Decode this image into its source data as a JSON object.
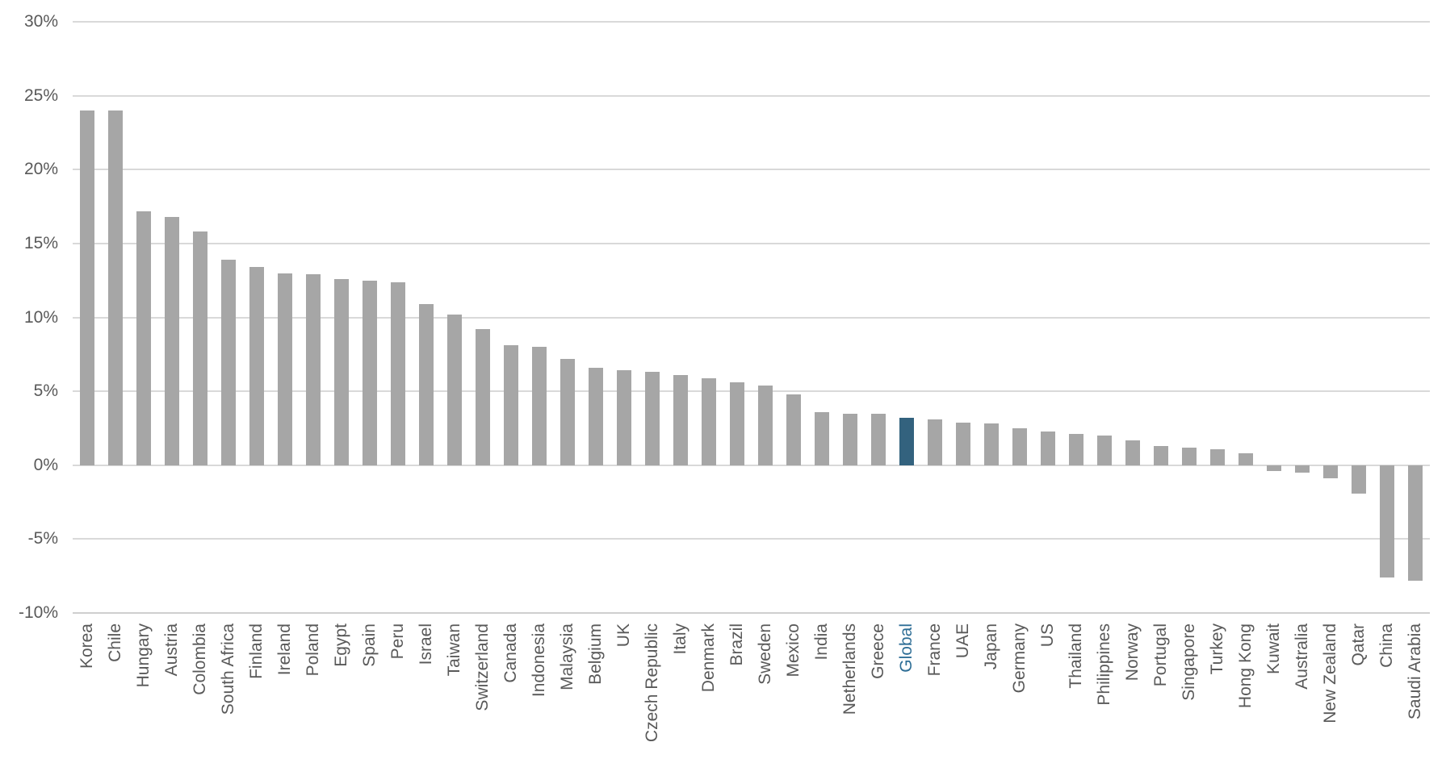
{
  "chart_data": {
    "type": "bar",
    "title": "",
    "xlabel": "",
    "ylabel": "",
    "grid": true,
    "legend": "none",
    "ylim": [
      -10,
      30
    ],
    "y_ticks": [
      {
        "value": 30,
        "label": "30%"
      },
      {
        "value": 25,
        "label": "25%"
      },
      {
        "value": 20,
        "label": "20%"
      },
      {
        "value": 15,
        "label": "15%"
      },
      {
        "value": 10,
        "label": "10%"
      },
      {
        "value": 5,
        "label": "5%"
      },
      {
        "value": 0,
        "label": "0%"
      },
      {
        "value": -5,
        "label": "-5%"
      },
      {
        "value": -10,
        "label": "-10%"
      }
    ],
    "categories": [
      "Korea",
      "Chile",
      "Hungary",
      "Austria",
      "Colombia",
      "South Africa",
      "Finland",
      "Ireland",
      "Poland",
      "Egypt",
      "Spain",
      "Peru",
      "Israel",
      "Taiwan",
      "Switzerland",
      "Canada",
      "Indonesia",
      "Malaysia",
      "Belgium",
      "UK",
      "Czech Republic",
      "Italy",
      "Denmark",
      "Brazil",
      "Sweden",
      "Mexico",
      "India",
      "Netherlands",
      "Greece",
      "Global",
      "France",
      "UAE",
      "Japan",
      "Germany",
      "US",
      "Thailand",
      "Philippines",
      "Norway",
      "Portugal",
      "Singapore",
      "Turkey",
      "Hong Kong",
      "Kuwait",
      "Australia",
      "New Zealand",
      "Qatar",
      "China",
      "Saudi Arabia"
    ],
    "values": [
      24.0,
      24.0,
      17.2,
      16.8,
      15.8,
      13.9,
      13.4,
      13.0,
      12.9,
      12.6,
      12.5,
      12.4,
      10.9,
      10.2,
      9.2,
      8.1,
      8.0,
      7.2,
      6.6,
      6.4,
      6.3,
      6.1,
      5.9,
      5.6,
      5.4,
      4.8,
      3.6,
      3.5,
      3.5,
      3.2,
      3.1,
      2.9,
      2.8,
      2.5,
      2.3,
      2.1,
      2.0,
      1.7,
      1.3,
      1.2,
      1.1,
      0.8,
      -0.4,
      -0.5,
      -0.9,
      -1.9,
      -7.6,
      -7.8
    ],
    "highlight_category": "Global",
    "colors": {
      "bar": "#A6A6A6",
      "highlight_bar": "#33627E",
      "label": "#595959",
      "highlight_label": "#2E6E96",
      "gridline": "#D9D9D9",
      "axis_line": "#CFCFCF"
    }
  }
}
